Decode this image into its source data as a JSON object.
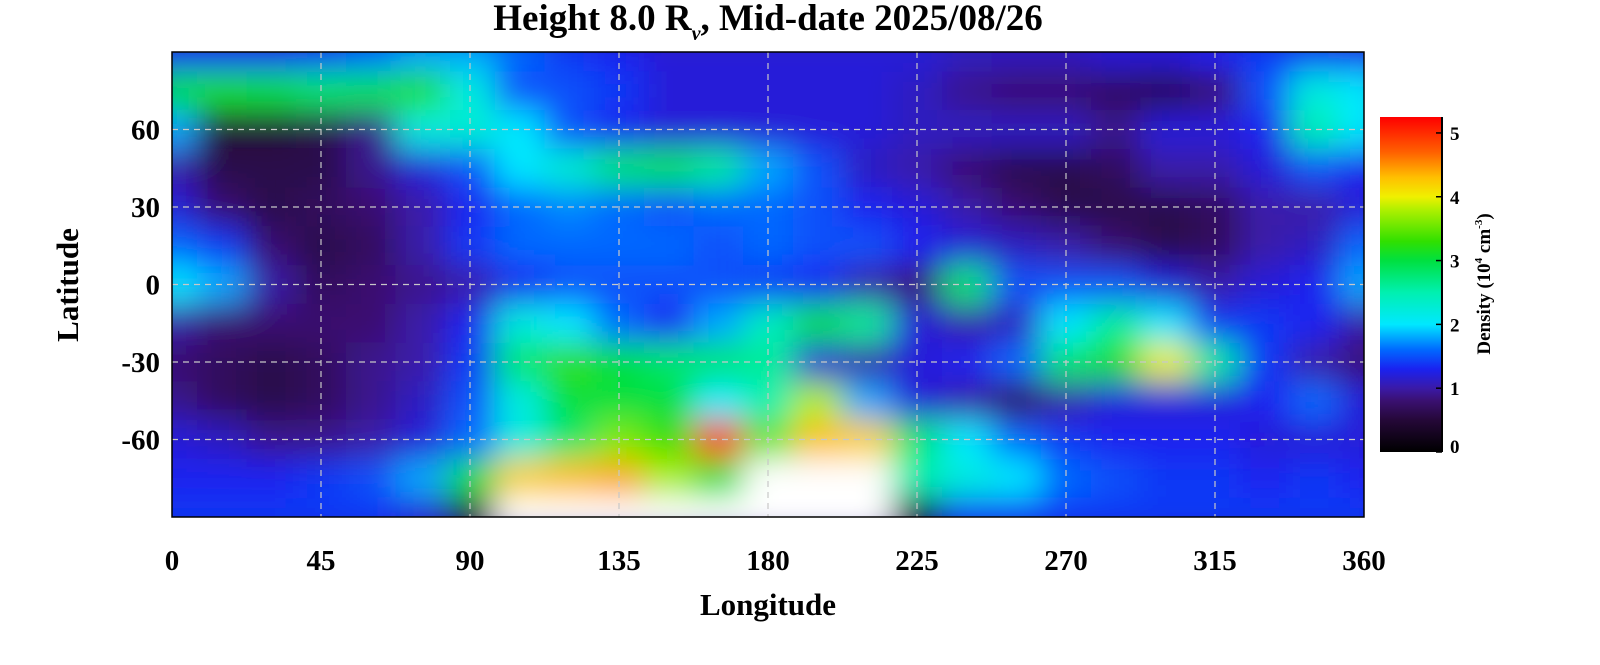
{
  "chart_data": {
    "type": "heatmap",
    "title": "Height 8.0 R",
    "title_subscript": "ν",
    "title_suffix": ", Mid-date 2025/08/26",
    "xlabel": "Longitude",
    "ylabel": "Latitude",
    "xlim": [
      0,
      360
    ],
    "ylim": [
      -90,
      90
    ],
    "xticks": [
      0,
      45,
      90,
      135,
      180,
      225,
      270,
      315,
      360
    ],
    "yticks": [
      60,
      30,
      0,
      -30,
      -60
    ],
    "grid": true,
    "lon": [
      0,
      15,
      30,
      45,
      60,
      75,
      90,
      105,
      120,
      135,
      150,
      165,
      180,
      195,
      210,
      225,
      240,
      255,
      270,
      285,
      300,
      315,
      330,
      345,
      360
    ],
    "lat": [
      90,
      75,
      60,
      45,
      30,
      15,
      0,
      -15,
      -30,
      -45,
      -60,
      -75,
      -90
    ],
    "values": [
      [
        1.3,
        1.3,
        1.3,
        1.4,
        1.6,
        1.8,
        1.8,
        1.6,
        1.4,
        1.3,
        1.2,
        1.2,
        1.2,
        1.2,
        1.2,
        1.2,
        1.1,
        1.1,
        1.1,
        1.2,
        1.2,
        1.3,
        1.4,
        1.4,
        1.3
      ],
      [
        3.0,
        3.1,
        3.0,
        2.8,
        2.9,
        3.2,
        2.2,
        1.5,
        1.5,
        1.4,
        1.2,
        1.2,
        1.2,
        1.2,
        1.2,
        1.1,
        0.9,
        0.8,
        0.8,
        0.7,
        0.6,
        0.8,
        1.5,
        2.2,
        2.0
      ],
      [
        1.8,
        0.5,
        0.5,
        0.6,
        0.9,
        2.2,
        2.3,
        2.0,
        1.5,
        1.3,
        1.2,
        1.2,
        1.2,
        1.2,
        1.2,
        1.1,
        1.1,
        1.1,
        1.1,
        0.9,
        1.2,
        1.2,
        1.3,
        2.5,
        2.0
      ],
      [
        1.0,
        0.6,
        0.6,
        0.6,
        0.9,
        1.2,
        1.5,
        2.0,
        2.3,
        2.8,
        2.9,
        2.6,
        1.8,
        1.5,
        1.1,
        1.0,
        0.8,
        0.6,
        0.6,
        0.7,
        1.0,
        1.0,
        1.2,
        1.5,
        1.3
      ],
      [
        1.2,
        0.8,
        0.6,
        0.7,
        0.8,
        1.0,
        1.3,
        1.6,
        1.7,
        1.6,
        1.5,
        1.6,
        1.6,
        1.5,
        1.3,
        1.2,
        1.0,
        0.8,
        0.6,
        0.6,
        0.6,
        0.7,
        1.0,
        1.0,
        1.2
      ],
      [
        1.6,
        1.4,
        0.8,
        0.6,
        0.7,
        1.0,
        1.4,
        1.6,
        1.6,
        1.6,
        1.6,
        1.5,
        1.6,
        1.5,
        1.5,
        1.3,
        1.2,
        1.1,
        1.0,
        0.8,
        0.6,
        0.7,
        1.0,
        1.1,
        1.6
      ],
      [
        2.0,
        1.8,
        1.0,
        0.7,
        0.8,
        0.9,
        1.0,
        1.3,
        1.5,
        1.5,
        1.5,
        1.5,
        1.4,
        1.3,
        1.0,
        0.8,
        2.8,
        1.5,
        1.5,
        1.5,
        1.2,
        1.0,
        1.2,
        1.3,
        1.8
      ],
      [
        1.0,
        0.8,
        0.8,
        0.8,
        0.8,
        1.0,
        1.3,
        2.2,
        2.0,
        1.6,
        1.3,
        1.8,
        2.4,
        3.0,
        2.6,
        1.2,
        1.0,
        1.1,
        2.0,
        2.6,
        2.0,
        1.4,
        1.4,
        1.3,
        1.0
      ],
      [
        0.8,
        0.7,
        0.6,
        0.7,
        0.9,
        1.0,
        1.4,
        2.8,
        3.3,
        3.0,
        2.8,
        2.8,
        2.6,
        1.2,
        1.0,
        1.2,
        1.3,
        1.6,
        2.8,
        3.2,
        4.0,
        2.6,
        1.4,
        1.0,
        0.8
      ],
      [
        0.9,
        0.7,
        0.6,
        0.7,
        0.9,
        1.1,
        1.5,
        2.2,
        3.0,
        3.0,
        3.0,
        2.0,
        2.5,
        3.8,
        1.8,
        1.2,
        1.0,
        0.7,
        1.0,
        1.2,
        1.2,
        1.2,
        1.3,
        1.6,
        1.2
      ],
      [
        1.2,
        1.1,
        0.9,
        0.9,
        1.0,
        1.2,
        1.6,
        2.2,
        2.8,
        3.6,
        3.3,
        5.1,
        3.5,
        4.3,
        4.2,
        2.8,
        2.0,
        1.6,
        1.4,
        1.3,
        1.3,
        1.3,
        1.2,
        1.2,
        1.2
      ],
      [
        1.3,
        1.3,
        1.3,
        1.4,
        1.5,
        1.8,
        3.0,
        4.2,
        4.3,
        4.4,
        3.8,
        3.0,
        null,
        null,
        null,
        2.5,
        2.2,
        2.0,
        1.6,
        1.5,
        1.4,
        1.4,
        1.3,
        1.4,
        1.3
      ],
      [
        1.4,
        1.4,
        1.4,
        1.4,
        1.4,
        1.2,
        0.5,
        null,
        null,
        null,
        null,
        null,
        null,
        null,
        null,
        0.3,
        1.4,
        1.4,
        1.4,
        1.4,
        1.4,
        1.4,
        1.4,
        1.4,
        1.4
      ]
    ],
    "colorbar": {
      "label": "Density (10",
      "label_exp1": "4",
      "label_mid": " cm",
      "label_exp2": "-3",
      "label_end": ")",
      "range": [
        0,
        5.25
      ],
      "ticks": [
        0,
        1,
        2,
        3,
        4,
        5
      ],
      "colormap": [
        [
          0,
          "#000000"
        ],
        [
          0.5,
          "#250838"
        ],
        [
          0.8,
          "#3a1070"
        ],
        [
          1.0,
          "#3a1aa8"
        ],
        [
          1.3,
          "#1a22f0"
        ],
        [
          1.6,
          "#0068ff"
        ],
        [
          2.0,
          "#00e8ff"
        ],
        [
          2.5,
          "#00f0b0"
        ],
        [
          3.0,
          "#00e040"
        ],
        [
          3.3,
          "#30e000"
        ],
        [
          3.8,
          "#b0f000"
        ],
        [
          4.0,
          "#f0f000"
        ],
        [
          4.3,
          "#ffc000"
        ],
        [
          4.7,
          "#ff6000"
        ],
        [
          5.25,
          "#ff0000"
        ]
      ],
      "missing_color": "#ffffff"
    }
  }
}
